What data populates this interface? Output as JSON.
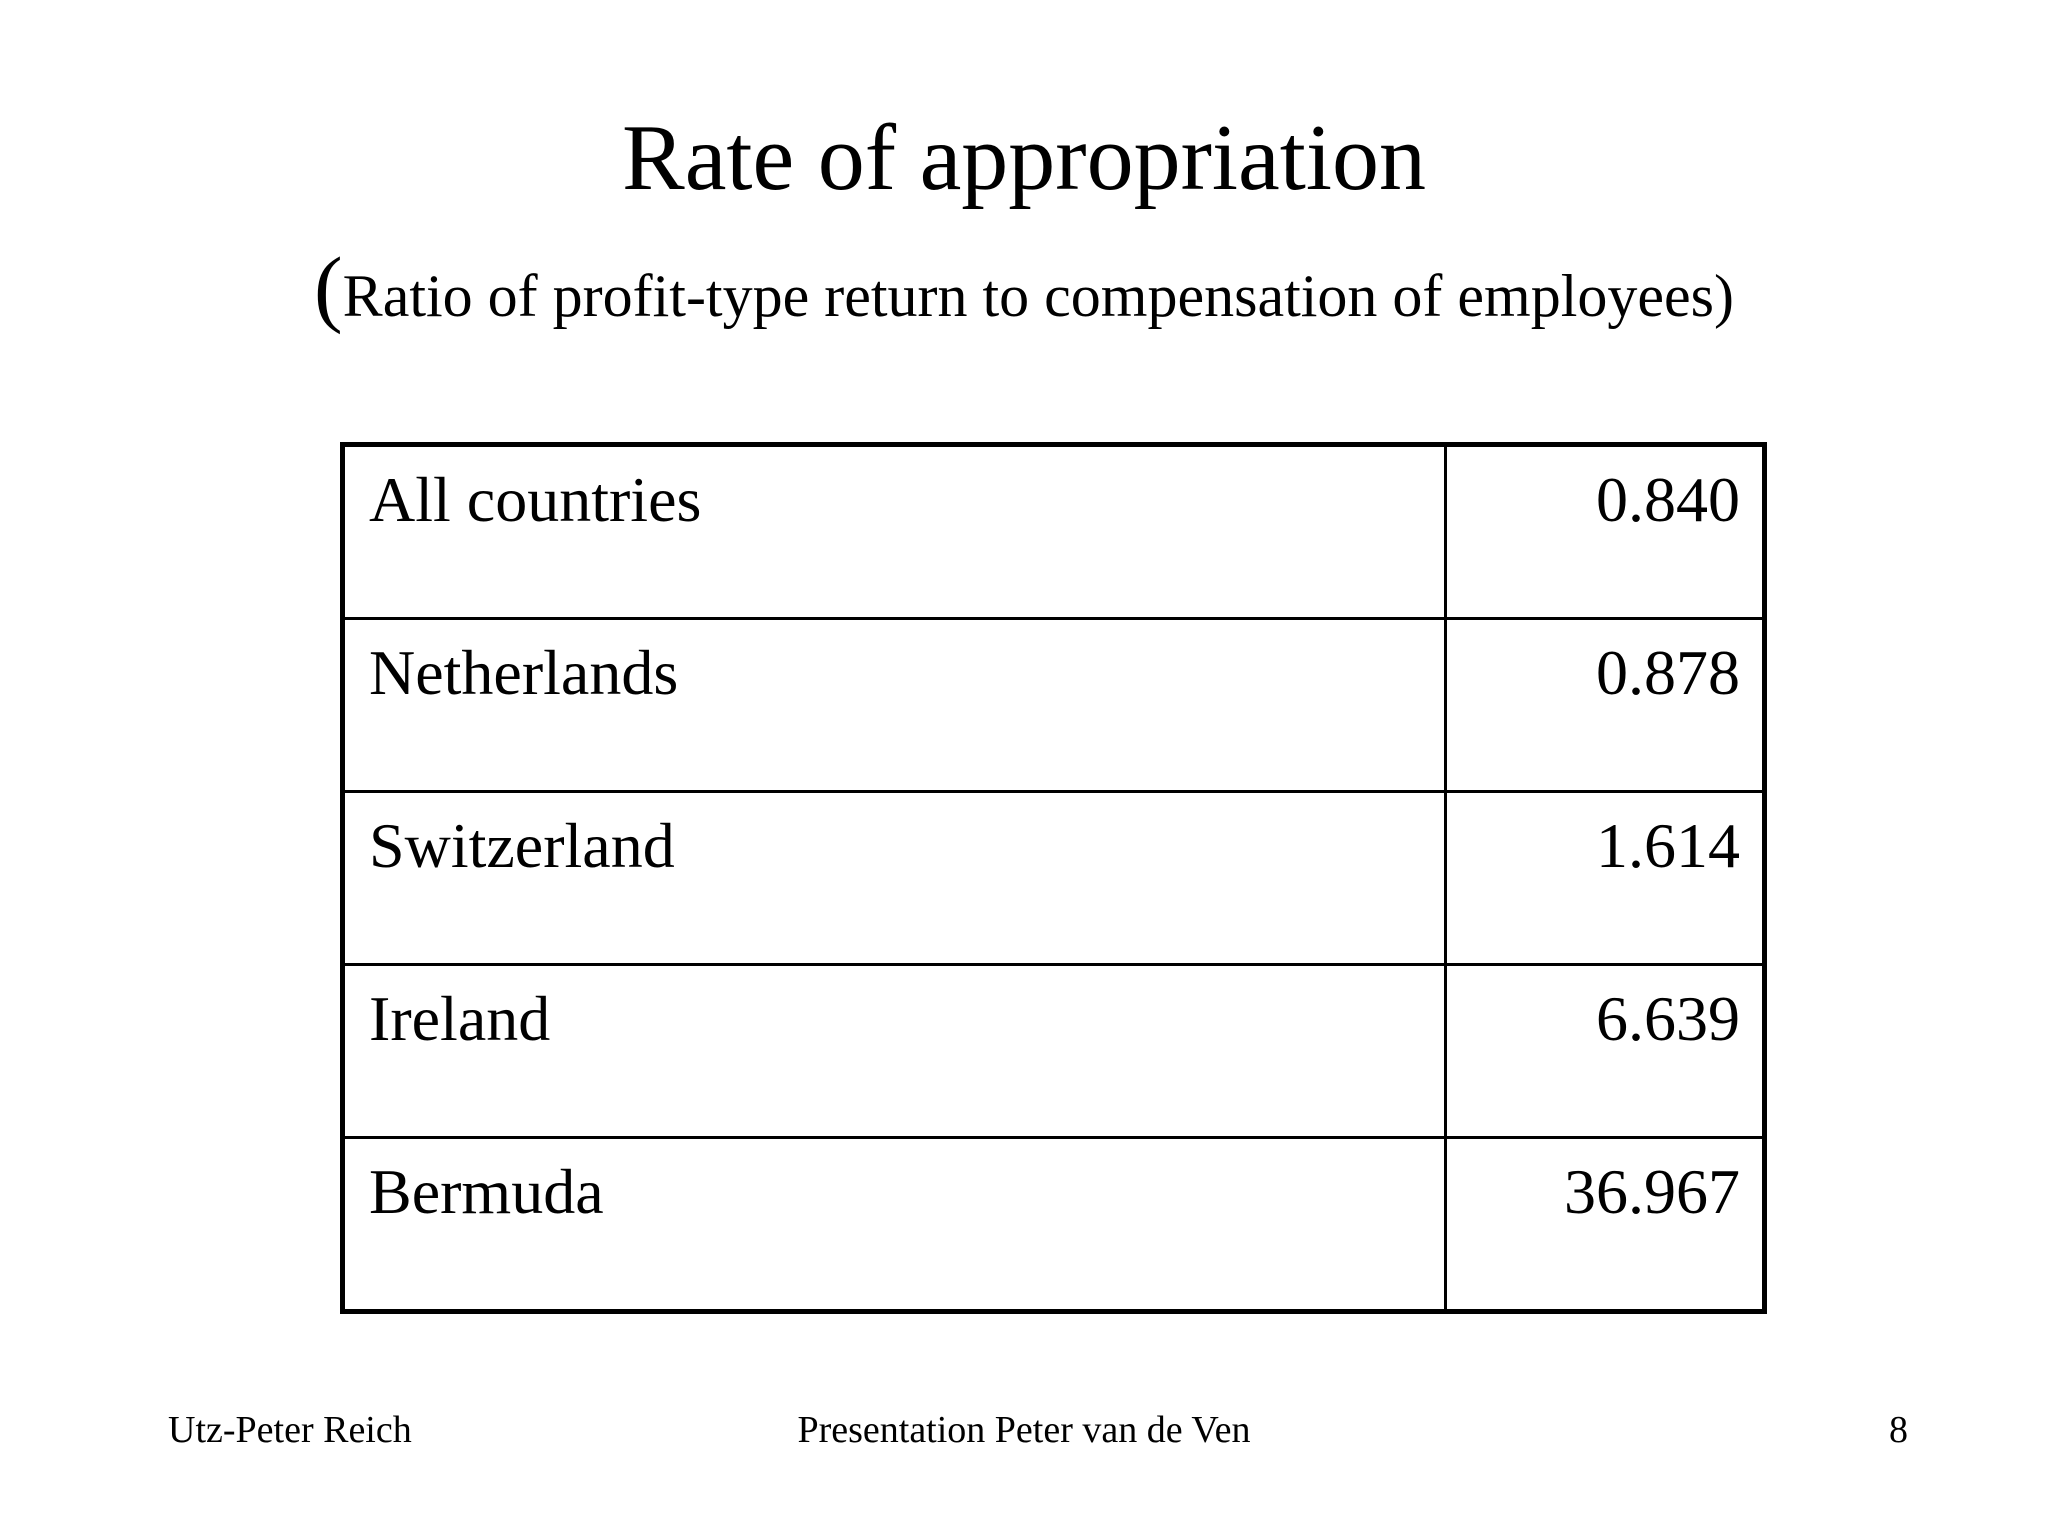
{
  "slide": {
    "title": "Rate of appropriation",
    "subtitle": {
      "open_paren": "(",
      "text": "Ratio of profit-type return to compensation of employees",
      "close_paren": ")"
    }
  },
  "table": {
    "rows": [
      {
        "label": "All countries",
        "value": "0.840"
      },
      {
        "label": "Netherlands",
        "value": "0.878"
      },
      {
        "label": "Switzerland",
        "value": "1.614"
      },
      {
        "label": "Ireland",
        "value": "6.639"
      },
      {
        "label": "Bermuda",
        "value": "36.967"
      }
    ]
  },
  "footer": {
    "author": "Utz-Peter Reich",
    "center": "Presentation Peter van de Ven",
    "page_number": "8"
  },
  "colors": {
    "background": "#ffffff",
    "text": "#000000",
    "table_border": "#000000"
  }
}
